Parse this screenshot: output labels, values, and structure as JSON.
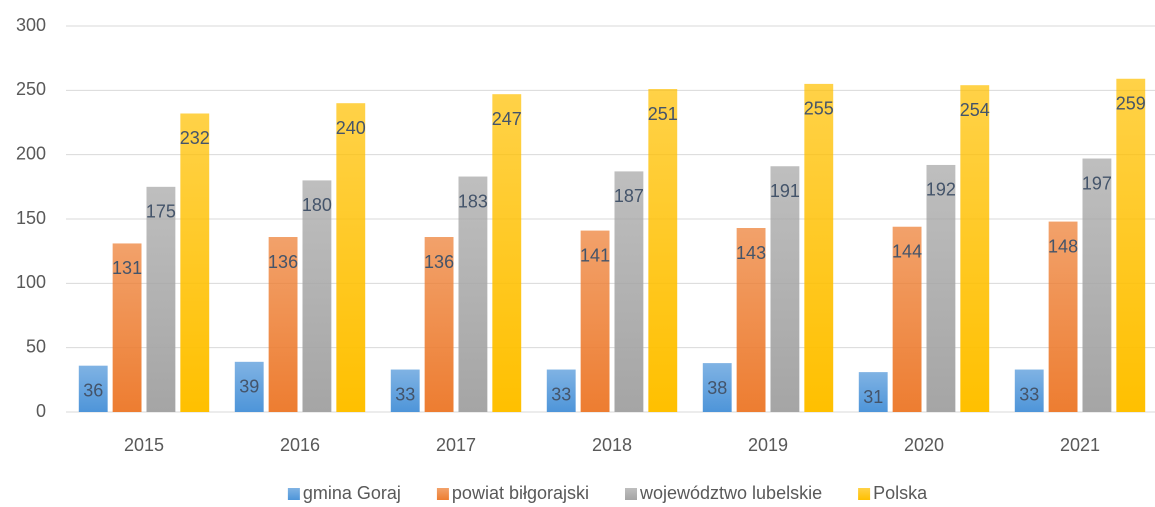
{
  "chart_data": {
    "type": "bar",
    "categories": [
      "2015",
      "2016",
      "2017",
      "2018",
      "2019",
      "2020",
      "2021"
    ],
    "series": [
      {
        "name": "gmina Goraj",
        "color": "#4e95d9",
        "values": [
          36,
          39,
          33,
          33,
          38,
          31,
          33
        ]
      },
      {
        "name": "powiat biłgorajski",
        "color": "#ed7d31",
        "values": [
          131,
          136,
          136,
          141,
          143,
          144,
          148
        ]
      },
      {
        "name": "województwo lubelskie",
        "color": "#a5a5a5",
        "values": [
          175,
          180,
          183,
          187,
          191,
          192,
          197
        ]
      },
      {
        "name": "Polska",
        "color": "#ffc000",
        "values": [
          232,
          240,
          247,
          251,
          255,
          254,
          259
        ]
      }
    ],
    "ylim": [
      0,
      300
    ],
    "yticks": [
      0,
      50,
      100,
      150,
      200,
      250,
      300
    ],
    "grid": true,
    "legend": "bottom"
  }
}
